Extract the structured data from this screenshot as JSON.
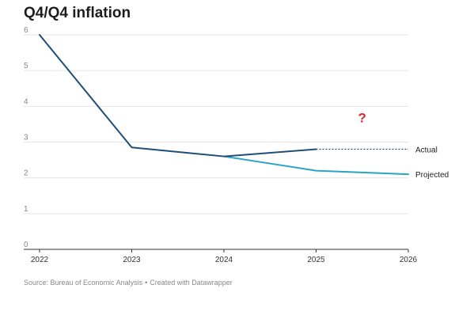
{
  "chart_data": {
    "type": "line",
    "title": "Q4/Q4 inflation",
    "xlabel": "",
    "ylabel": "",
    "x": [
      2022,
      2023,
      2024,
      2025,
      2026
    ],
    "xlim": [
      2022,
      2026
    ],
    "ylim": [
      0,
      6
    ],
    "yticks": [
      0,
      1,
      2,
      3,
      4,
      5,
      6
    ],
    "xticks": [
      "2022",
      "2023",
      "2024",
      "2025",
      "2026"
    ],
    "grid": true,
    "series": [
      {
        "name": "Actual",
        "color": "#1f4e79",
        "points": [
          [
            2022,
            6.0
          ],
          [
            2023,
            2.85
          ],
          [
            2024,
            2.6
          ],
          [
            2025,
            2.8
          ]
        ],
        "extension": {
          "style": "dotted",
          "points": [
            [
              2025,
              2.8
            ],
            [
              2026,
              2.8
            ]
          ]
        }
      },
      {
        "name": "Projected",
        "color": "#2aa3c7",
        "points": [
          [
            2024,
            2.6
          ],
          [
            2025,
            2.2
          ],
          [
            2026,
            2.1
          ]
        ]
      }
    ],
    "annotations": [
      {
        "text": "?",
        "x": 2025.5,
        "y": 3.55,
        "color": "#e3262b"
      }
    ]
  },
  "footer": {
    "source": "Source: Bureau of Economic Analysis",
    "separator": "•",
    "credit": "Created with Datawrapper"
  }
}
